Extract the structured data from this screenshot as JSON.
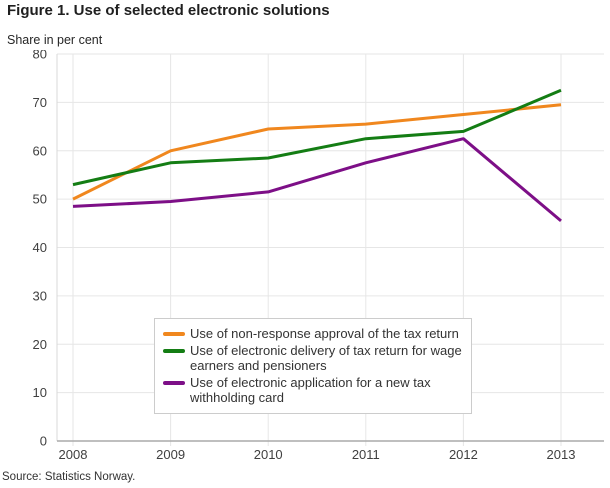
{
  "title": "Figure 1. Use of selected electronic solutions",
  "subtitle": "Share in per cent",
  "source": "Source: Statistics Norway.",
  "colors": {
    "grid": "#e6e6e6",
    "axis": "#aaaaaa",
    "plot_left_border": "#d9d9d9",
    "tick_text": "#404040",
    "legend_border": "#cccccc"
  },
  "chart_data": {
    "type": "line",
    "x": [
      2008,
      2009,
      2010,
      2011,
      2012,
      2013
    ],
    "series": [
      {
        "name": "Use of non-response approval of the tax return",
        "color": "#f0871e",
        "values": [
          50,
          60,
          64.5,
          65.5,
          67.5,
          69.5
        ]
      },
      {
        "name": "Use of electronic delivery of tax return for wage earners and pensioners",
        "color": "#147d14",
        "values": [
          53,
          57.5,
          58.5,
          62.5,
          64,
          72.5
        ]
      },
      {
        "name": "Use of electronic application for a new tax withholding card",
        "color": "#7d0f87",
        "values": [
          48.5,
          49.5,
          51.5,
          57.5,
          62.5,
          45.5
        ]
      }
    ],
    "title": "Figure 1. Use of selected electronic solutions",
    "xlabel": "",
    "ylabel": "Share in per cent",
    "ylim": [
      0,
      80
    ],
    "yticks": [
      0,
      10,
      20,
      30,
      40,
      50,
      60,
      70,
      80
    ],
    "grid": true,
    "legend_position": "inside-bottom-center"
  }
}
